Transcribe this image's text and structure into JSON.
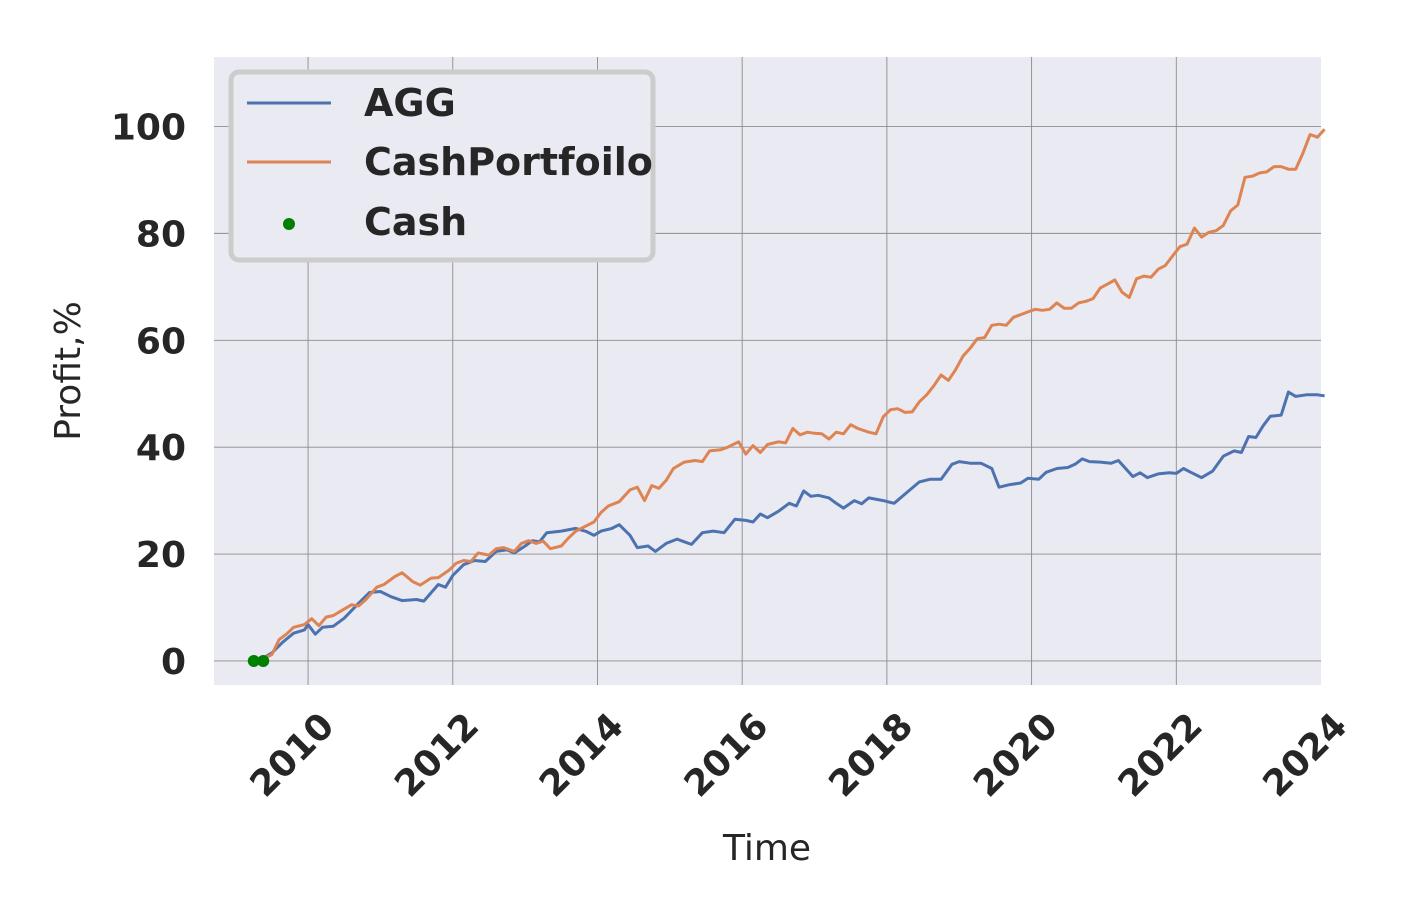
{
  "chart_data": {
    "type": "line",
    "xlabel": "Time",
    "ylabel": "Profit,%",
    "xlim": [
      2008.7,
      2024.0
    ],
    "ylim": [
      -4.5,
      113
    ],
    "x_ticks": [
      2010,
      2012,
      2014,
      2016,
      2018,
      2020,
      2022,
      2024
    ],
    "y_ticks": [
      0,
      20,
      40,
      60,
      80,
      100
    ],
    "grid": true,
    "legend_position": "upper-left",
    "colors": {
      "AGG": "#4c72b0",
      "CashPortfoilo": "#dd8452",
      "Cash": "#008000",
      "background": "#eaeaf2",
      "grid": "#8c8c8c"
    },
    "series": [
      {
        "name": "AGG",
        "kind": "line",
        "points": [
          [
            2009.25,
            0
          ],
          [
            2009.35,
            0.3
          ],
          [
            2009.5,
            1.5
          ],
          [
            2009.65,
            3.5
          ],
          [
            2009.8,
            5.2
          ],
          [
            2009.95,
            5.8
          ],
          [
            2010.0,
            6.8
          ],
          [
            2010.1,
            5.0
          ],
          [
            2010.2,
            6.3
          ],
          [
            2010.35,
            6.5
          ],
          [
            2010.5,
            8.0
          ],
          [
            2010.7,
            10.8
          ],
          [
            2010.85,
            12.8
          ],
          [
            2011.0,
            13.0
          ],
          [
            2011.15,
            12.0
          ],
          [
            2011.3,
            11.3
          ],
          [
            2011.5,
            11.5
          ],
          [
            2011.6,
            11.2
          ],
          [
            2011.8,
            14.3
          ],
          [
            2011.9,
            13.8
          ],
          [
            2012.0,
            16.0
          ],
          [
            2012.15,
            18.0
          ],
          [
            2012.3,
            18.8
          ],
          [
            2012.45,
            18.6
          ],
          [
            2012.6,
            20.5
          ],
          [
            2012.75,
            20.8
          ],
          [
            2012.85,
            20.2
          ],
          [
            2013.0,
            21.5
          ],
          [
            2013.1,
            22.5
          ],
          [
            2013.2,
            22.3
          ],
          [
            2013.3,
            24.0
          ],
          [
            2013.5,
            24.3
          ],
          [
            2013.7,
            24.8
          ],
          [
            2013.85,
            24.2
          ],
          [
            2013.95,
            23.5
          ],
          [
            2014.05,
            24.3
          ],
          [
            2014.2,
            24.8
          ],
          [
            2014.3,
            25.5
          ],
          [
            2014.45,
            23.5
          ],
          [
            2014.55,
            21.2
          ],
          [
            2014.7,
            21.5
          ],
          [
            2014.8,
            20.5
          ],
          [
            2014.95,
            22.0
          ],
          [
            2015.1,
            22.8
          ],
          [
            2015.2,
            22.3
          ],
          [
            2015.3,
            21.8
          ],
          [
            2015.45,
            24.0
          ],
          [
            2015.6,
            24.3
          ],
          [
            2015.75,
            24.0
          ],
          [
            2015.9,
            26.5
          ],
          [
            2016.05,
            26.3
          ],
          [
            2016.15,
            26.0
          ],
          [
            2016.25,
            27.5
          ],
          [
            2016.35,
            26.8
          ],
          [
            2016.5,
            28.0
          ],
          [
            2016.65,
            29.5
          ],
          [
            2016.75,
            29.0
          ],
          [
            2016.85,
            31.8
          ],
          [
            2016.95,
            30.8
          ],
          [
            2017.05,
            31.0
          ],
          [
            2017.2,
            30.5
          ],
          [
            2017.3,
            29.5
          ],
          [
            2017.4,
            28.6
          ],
          [
            2017.55,
            30.0
          ],
          [
            2017.65,
            29.4
          ],
          [
            2017.75,
            30.5
          ],
          [
            2017.95,
            30.0
          ],
          [
            2018.1,
            29.5
          ],
          [
            2018.3,
            31.8
          ],
          [
            2018.45,
            33.5
          ],
          [
            2018.6,
            34.0
          ],
          [
            2018.75,
            34.0
          ],
          [
            2018.9,
            36.8
          ],
          [
            2019.0,
            37.3
          ],
          [
            2019.15,
            37.0
          ],
          [
            2019.3,
            37.0
          ],
          [
            2019.45,
            36.0
          ],
          [
            2019.55,
            32.5
          ],
          [
            2019.7,
            33.0
          ],
          [
            2019.85,
            33.3
          ],
          [
            2019.95,
            34.2
          ],
          [
            2020.1,
            34.0
          ],
          [
            2020.2,
            35.3
          ],
          [
            2020.35,
            36.0
          ],
          [
            2020.5,
            36.2
          ],
          [
            2020.6,
            36.8
          ],
          [
            2020.7,
            37.8
          ],
          [
            2020.8,
            37.3
          ],
          [
            2020.95,
            37.2
          ],
          [
            2021.1,
            37.0
          ],
          [
            2021.2,
            37.5
          ],
          [
            2021.3,
            36.0
          ],
          [
            2021.4,
            34.5
          ],
          [
            2021.5,
            35.2
          ],
          [
            2021.6,
            34.3
          ],
          [
            2021.75,
            35.0
          ],
          [
            2021.9,
            35.2
          ],
          [
            2022.0,
            35.1
          ],
          [
            2022.1,
            36.0
          ],
          [
            2022.2,
            35.3
          ],
          [
            2022.35,
            34.3
          ],
          [
            2022.5,
            35.5
          ],
          [
            2022.65,
            38.3
          ],
          [
            2022.8,
            39.3
          ],
          [
            2022.9,
            39.0
          ],
          [
            2023.0,
            42.0
          ],
          [
            2023.1,
            41.8
          ],
          [
            2023.2,
            44.0
          ],
          [
            2023.3,
            45.8
          ],
          [
            2023.45,
            46.0
          ],
          [
            2023.55,
            50.3
          ],
          [
            2023.65,
            49.5
          ],
          [
            2023.8,
            49.8
          ],
          [
            2023.95,
            49.8
          ],
          [
            2024.05,
            49.6
          ]
        ]
      },
      {
        "name": "CashPortfoilo",
        "kind": "line",
        "points": [
          [
            2009.25,
            0
          ],
          [
            2009.35,
            0.2
          ],
          [
            2009.5,
            1.2
          ],
          [
            2009.6,
            4.0
          ],
          [
            2009.7,
            5.0
          ],
          [
            2009.8,
            6.3
          ],
          [
            2009.95,
            6.8
          ],
          [
            2010.05,
            7.9
          ],
          [
            2010.15,
            6.6
          ],
          [
            2010.25,
            8.2
          ],
          [
            2010.35,
            8.5
          ],
          [
            2010.45,
            9.3
          ],
          [
            2010.6,
            10.5
          ],
          [
            2010.7,
            10.3
          ],
          [
            2010.8,
            11.5
          ],
          [
            2010.95,
            13.8
          ],
          [
            2011.05,
            14.3
          ],
          [
            2011.2,
            15.8
          ],
          [
            2011.3,
            16.5
          ],
          [
            2011.45,
            14.8
          ],
          [
            2011.55,
            14.2
          ],
          [
            2011.7,
            15.5
          ],
          [
            2011.8,
            15.6
          ],
          [
            2011.95,
            17.0
          ],
          [
            2012.05,
            18.3
          ],
          [
            2012.15,
            18.8
          ],
          [
            2012.25,
            18.6
          ],
          [
            2012.35,
            20.2
          ],
          [
            2012.5,
            19.8
          ],
          [
            2012.6,
            21.0
          ],
          [
            2012.7,
            21.2
          ],
          [
            2012.85,
            20.5
          ],
          [
            2012.95,
            22.0
          ],
          [
            2013.05,
            22.5
          ],
          [
            2013.15,
            22.0
          ],
          [
            2013.25,
            22.4
          ],
          [
            2013.35,
            21.0
          ],
          [
            2013.5,
            21.5
          ],
          [
            2013.6,
            23.0
          ],
          [
            2013.7,
            24.3
          ],
          [
            2013.85,
            25.3
          ],
          [
            2013.95,
            26.0
          ],
          [
            2014.05,
            27.8
          ],
          [
            2014.15,
            29.0
          ],
          [
            2014.3,
            29.8
          ],
          [
            2014.45,
            32.0
          ],
          [
            2014.55,
            32.5
          ],
          [
            2014.65,
            30.0
          ],
          [
            2014.75,
            32.8
          ],
          [
            2014.85,
            32.3
          ],
          [
            2014.95,
            33.8
          ],
          [
            2015.05,
            36.0
          ],
          [
            2015.2,
            37.2
          ],
          [
            2015.35,
            37.5
          ],
          [
            2015.45,
            37.3
          ],
          [
            2015.55,
            39.3
          ],
          [
            2015.7,
            39.5
          ],
          [
            2015.8,
            40.0
          ],
          [
            2015.95,
            41.0
          ],
          [
            2016.05,
            38.7
          ],
          [
            2016.15,
            40.3
          ],
          [
            2016.25,
            39.0
          ],
          [
            2016.35,
            40.5
          ],
          [
            2016.5,
            41.0
          ],
          [
            2016.6,
            40.8
          ],
          [
            2016.7,
            43.5
          ],
          [
            2016.8,
            42.3
          ],
          [
            2016.9,
            42.8
          ],
          [
            2017.0,
            42.6
          ],
          [
            2017.1,
            42.5
          ],
          [
            2017.2,
            41.5
          ],
          [
            2017.3,
            42.8
          ],
          [
            2017.4,
            42.5
          ],
          [
            2017.5,
            44.2
          ],
          [
            2017.6,
            43.5
          ],
          [
            2017.75,
            42.8
          ],
          [
            2017.85,
            42.5
          ],
          [
            2017.95,
            45.7
          ],
          [
            2018.05,
            47.0
          ],
          [
            2018.15,
            47.2
          ],
          [
            2018.25,
            46.5
          ],
          [
            2018.35,
            46.6
          ],
          [
            2018.45,
            48.5
          ],
          [
            2018.55,
            49.8
          ],
          [
            2018.65,
            51.5
          ],
          [
            2018.75,
            53.5
          ],
          [
            2018.85,
            52.5
          ],
          [
            2018.95,
            54.5
          ],
          [
            2019.05,
            57.0
          ],
          [
            2019.15,
            58.5
          ],
          [
            2019.25,
            60.3
          ],
          [
            2019.35,
            60.5
          ],
          [
            2019.45,
            62.8
          ],
          [
            2019.55,
            63.0
          ],
          [
            2019.65,
            62.8
          ],
          [
            2019.75,
            64.3
          ],
          [
            2019.85,
            64.8
          ],
          [
            2019.95,
            65.3
          ],
          [
            2020.05,
            65.8
          ],
          [
            2020.15,
            65.6
          ],
          [
            2020.25,
            65.8
          ],
          [
            2020.35,
            67.0
          ],
          [
            2020.45,
            66.0
          ],
          [
            2020.55,
            66.0
          ],
          [
            2020.65,
            67.0
          ],
          [
            2020.75,
            67.3
          ],
          [
            2020.85,
            67.8
          ],
          [
            2020.95,
            69.8
          ],
          [
            2021.05,
            70.5
          ],
          [
            2021.15,
            71.3
          ],
          [
            2021.25,
            69.0
          ],
          [
            2021.35,
            68.0
          ],
          [
            2021.45,
            71.5
          ],
          [
            2021.55,
            72.0
          ],
          [
            2021.65,
            71.8
          ],
          [
            2021.75,
            73.3
          ],
          [
            2021.85,
            74.0
          ],
          [
            2021.95,
            75.8
          ],
          [
            2022.05,
            77.5
          ],
          [
            2022.15,
            78.0
          ],
          [
            2022.25,
            81.0
          ],
          [
            2022.35,
            79.3
          ],
          [
            2022.45,
            80.2
          ],
          [
            2022.55,
            80.5
          ],
          [
            2022.65,
            81.5
          ],
          [
            2022.75,
            84.2
          ],
          [
            2022.85,
            85.3
          ],
          [
            2022.95,
            90.5
          ],
          [
            2023.05,
            90.7
          ],
          [
            2023.15,
            91.3
          ],
          [
            2023.25,
            91.5
          ],
          [
            2023.35,
            92.5
          ],
          [
            2023.45,
            92.5
          ],
          [
            2023.55,
            92.0
          ],
          [
            2023.65,
            92.0
          ],
          [
            2023.75,
            95.0
          ],
          [
            2023.85,
            98.5
          ],
          [
            2023.95,
            98.0
          ],
          [
            2024.05,
            99.5
          ]
        ]
      },
      {
        "name": "Cash",
        "kind": "scatter",
        "points": [
          [
            2009.25,
            0
          ],
          [
            2009.38,
            0
          ]
        ]
      }
    ]
  }
}
